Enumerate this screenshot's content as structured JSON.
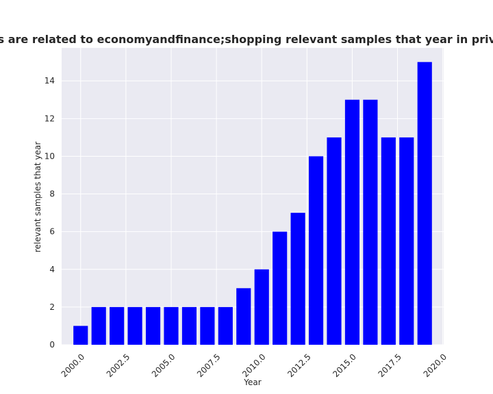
{
  "chart_data": {
    "type": "bar",
    "title": "Categories are related to economyandfinance;shopping relevant samples that year in privacy policies",
    "xlabel": "Year",
    "ylabel": "relevant samples that year",
    "x": [
      2000,
      2001,
      2002,
      2003,
      2004,
      2005,
      2006,
      2007,
      2008,
      2009,
      2010,
      2011,
      2012,
      2013,
      2014,
      2015,
      2016,
      2017,
      2018,
      2019
    ],
    "values": [
      1,
      2,
      2,
      2,
      2,
      2,
      2,
      2,
      2,
      3,
      4,
      6,
      7,
      10,
      11,
      13,
      13,
      11,
      11,
      15
    ],
    "xlim": [
      1998.95,
      2020.05
    ],
    "ylim": [
      0,
      15.75
    ],
    "xticks": [
      "2000.0",
      "2002.5",
      "2005.0",
      "2007.5",
      "2010.0",
      "2012.5",
      "2015.0",
      "2017.5",
      "2020.0"
    ],
    "yticks": [
      "0",
      "2",
      "4",
      "6",
      "8",
      "10",
      "12",
      "14"
    ],
    "grid": true,
    "bar_color": "#0000ff",
    "plot_background": "#eaeaf2",
    "grid_color": "#ffffff"
  }
}
